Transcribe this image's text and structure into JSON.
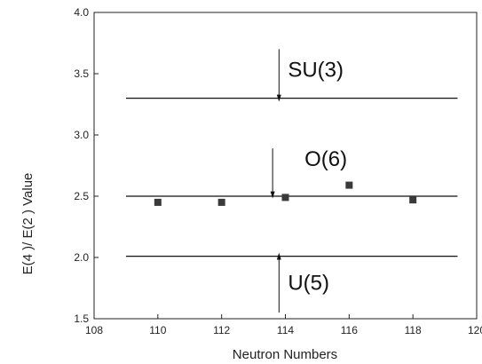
{
  "chart_data": {
    "type": "scatter",
    "xlabel": "Neutron Numbers",
    "ylabel": "E(4 )/ E(2 ) Value",
    "xlim": [
      108,
      120
    ],
    "ylim": [
      1.5,
      4.0
    ],
    "xticks": [
      108,
      110,
      112,
      114,
      116,
      118,
      120
    ],
    "yticks": [
      1.5,
      2.0,
      2.5,
      3.0,
      3.5,
      4.0
    ],
    "xtick_labels": [
      "108",
      "110",
      "112",
      "114",
      "116",
      "118",
      "120"
    ],
    "ytick_labels": [
      "1.5",
      "2.0",
      "2.5",
      "3.0",
      "3.5",
      "4.0"
    ],
    "grid": false,
    "marker_color": "#3a3a3a",
    "series": [
      {
        "x": [
          110,
          112,
          114,
          116,
          118
        ],
        "values": [
          2.45,
          2.45,
          2.49,
          2.59,
          2.47
        ]
      }
    ],
    "reference_lines": [
      {
        "label": "SU(3)",
        "y": 3.3,
        "x_from": 109,
        "x_to": 119.4,
        "arrow_x": 113.8,
        "arrow_from": 3.7,
        "arrow_to": 3.3
      },
      {
        "label": "O(6)",
        "y": 2.5,
        "x_from": 109,
        "x_to": 119.4,
        "arrow_x": 113.6,
        "arrow_from": 2.89,
        "arrow_to": 2.51
      },
      {
        "label": "U(5)",
        "y": 2.01,
        "x_from": 109,
        "x_to": 119.4,
        "arrow_x": 113.8,
        "arrow_from": 1.55,
        "arrow_to": 2.01
      }
    ]
  }
}
